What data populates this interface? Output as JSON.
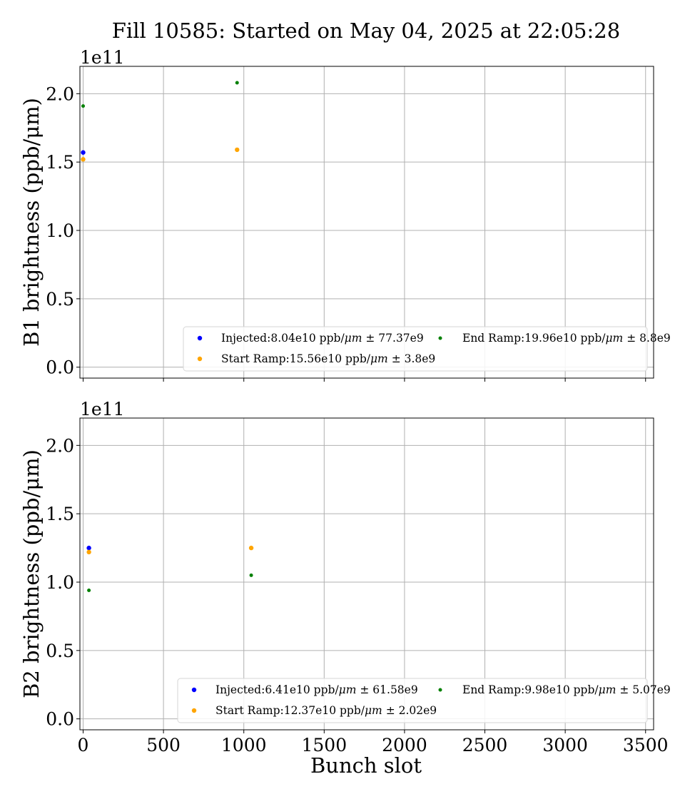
{
  "title": "Fill 10585: Started on May 04, 2025 at 22:05:28",
  "chart_data": [
    {
      "type": "scatter",
      "ylabel": "B1 brightness (ppb/μm)",
      "y_offset_label": "1e11",
      "xlim": [
        -20,
        3550
      ],
      "ylim": [
        -0.08,
        2.2
      ],
      "y_multiplier": "1e11",
      "xticks": [
        0,
        500,
        1000,
        1500,
        2000,
        2500,
        3000,
        3500
      ],
      "yticks": [
        0.0,
        0.5,
        1.0,
        1.5,
        2.0
      ],
      "ytick_labels": [
        "0.0",
        "0.5",
        "1.0",
        "1.5",
        "2.0"
      ],
      "show_xtick_labels": false,
      "grid": true,
      "legend_placement": "lower right",
      "series": [
        {
          "name": "Injected",
          "legend_value": "8.04e10",
          "legend_std": "77.37e9",
          "color": "#0000ff",
          "marker": "circle",
          "x": [
            0
          ],
          "y": [
            1.57
          ]
        },
        {
          "name": "Start Ramp",
          "legend_value": "15.56e10",
          "legend_std": "3.8e9",
          "color": "#ffa500",
          "marker": "circle",
          "x": [
            0,
            958
          ],
          "y": [
            1.52,
            1.59
          ]
        },
        {
          "name": "End Ramp",
          "legend_value": "19.96e10",
          "legend_std": "8.8e9",
          "color": "#008000",
          "marker": "point",
          "x": [
            0,
            958
          ],
          "y": [
            1.91,
            2.08
          ]
        }
      ]
    },
    {
      "type": "scatter",
      "ylabel": "B2 brightness (ppb/μm)",
      "xlabel": "Bunch slot",
      "y_offset_label": "1e11",
      "xlim": [
        -20,
        3550
      ],
      "ylim": [
        -0.08,
        2.2
      ],
      "y_multiplier": "1e11",
      "xticks": [
        0,
        500,
        1000,
        1500,
        2000,
        2500,
        3000,
        3500
      ],
      "xtick_labels": [
        "0",
        "500",
        "1000",
        "1500",
        "2000",
        "2500",
        "3000",
        "3500"
      ],
      "yticks": [
        0.0,
        0.5,
        1.0,
        1.5,
        2.0
      ],
      "ytick_labels": [
        "0.0",
        "0.5",
        "1.0",
        "1.5",
        "2.0"
      ],
      "show_xtick_labels": true,
      "grid": true,
      "legend_placement": "lower right",
      "series": [
        {
          "name": "Injected",
          "legend_value": "6.41e10",
          "legend_std": "61.58e9",
          "color": "#0000ff",
          "marker": "circle",
          "x": [
            36
          ],
          "y": [
            1.25
          ]
        },
        {
          "name": "Start Ramp",
          "legend_value": "12.37e10",
          "legend_std": "2.02e9",
          "color": "#ffa500",
          "marker": "circle",
          "x": [
            36,
            1046
          ],
          "y": [
            1.22,
            1.25
          ]
        },
        {
          "name": "End Ramp",
          "legend_value": "9.98e10",
          "legend_std": "5.07e9",
          "color": "#008000",
          "marker": "point",
          "x": [
            36,
            1046
          ],
          "y": [
            0.94,
            1.05
          ]
        }
      ]
    }
  ]
}
